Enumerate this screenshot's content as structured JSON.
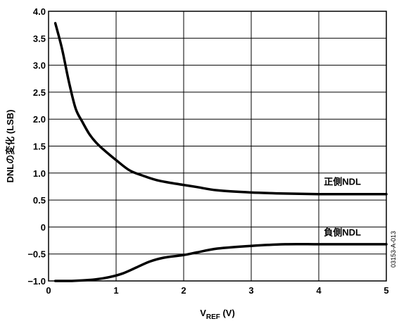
{
  "chart_data": {
    "type": "line",
    "xlabel_main": "V",
    "xlabel_sub": "REF",
    "xlabel_unit": " (V)",
    "ylabel": "DNLの変化 (LSB)",
    "xlim": [
      0,
      5
    ],
    "ylim": [
      -1.0,
      4.0
    ],
    "x_ticks": [
      0,
      1,
      2,
      3,
      4,
      5
    ],
    "x_tick_labels": [
      "0",
      "1",
      "2",
      "3",
      "4",
      "5"
    ],
    "y_ticks": [
      4.0,
      3.5,
      3.0,
      2.5,
      2.0,
      1.5,
      1.0,
      0.5,
      0,
      -0.5,
      -1.0
    ],
    "y_tick_labels": [
      "4.0",
      "3.5",
      "3.0",
      "2.5",
      "2.0",
      "1.5",
      "1.0",
      "0.5",
      "0",
      "−0.5",
      "−1.0"
    ],
    "grid": true,
    "series": [
      {
        "name": "正側NDL",
        "x": [
          0.1,
          0.2,
          0.3,
          0.4,
          0.5,
          0.6,
          0.7,
          0.8,
          1.0,
          1.2,
          1.4,
          1.6,
          1.8,
          2.0,
          2.2,
          2.5,
          3.0,
          3.5,
          4.0,
          4.5,
          5.0
        ],
        "y": [
          3.78,
          3.3,
          2.7,
          2.2,
          1.95,
          1.73,
          1.57,
          1.45,
          1.24,
          1.05,
          0.95,
          0.87,
          0.82,
          0.78,
          0.74,
          0.68,
          0.64,
          0.62,
          0.61,
          0.61,
          0.61
        ]
      },
      {
        "name": "負側NDL",
        "x": [
          0.1,
          0.3,
          0.5,
          0.7,
          0.9,
          1.1,
          1.3,
          1.5,
          1.7,
          2.0,
          2.2,
          2.5,
          3.0,
          3.5,
          4.0,
          4.5,
          5.0
        ],
        "y": [
          -1.0,
          -1.0,
          -0.99,
          -0.97,
          -0.93,
          -0.86,
          -0.75,
          -0.64,
          -0.57,
          -0.52,
          -0.47,
          -0.4,
          -0.35,
          -0.32,
          -0.32,
          -0.32,
          -0.32
        ]
      }
    ],
    "annotations": [
      {
        "text": "正側NDL",
        "x": 4.35,
        "y": 0.78
      },
      {
        "text": "負側NDL",
        "x": 4.35,
        "y": -0.16
      }
    ],
    "figure_id": "03153-A-013"
  }
}
